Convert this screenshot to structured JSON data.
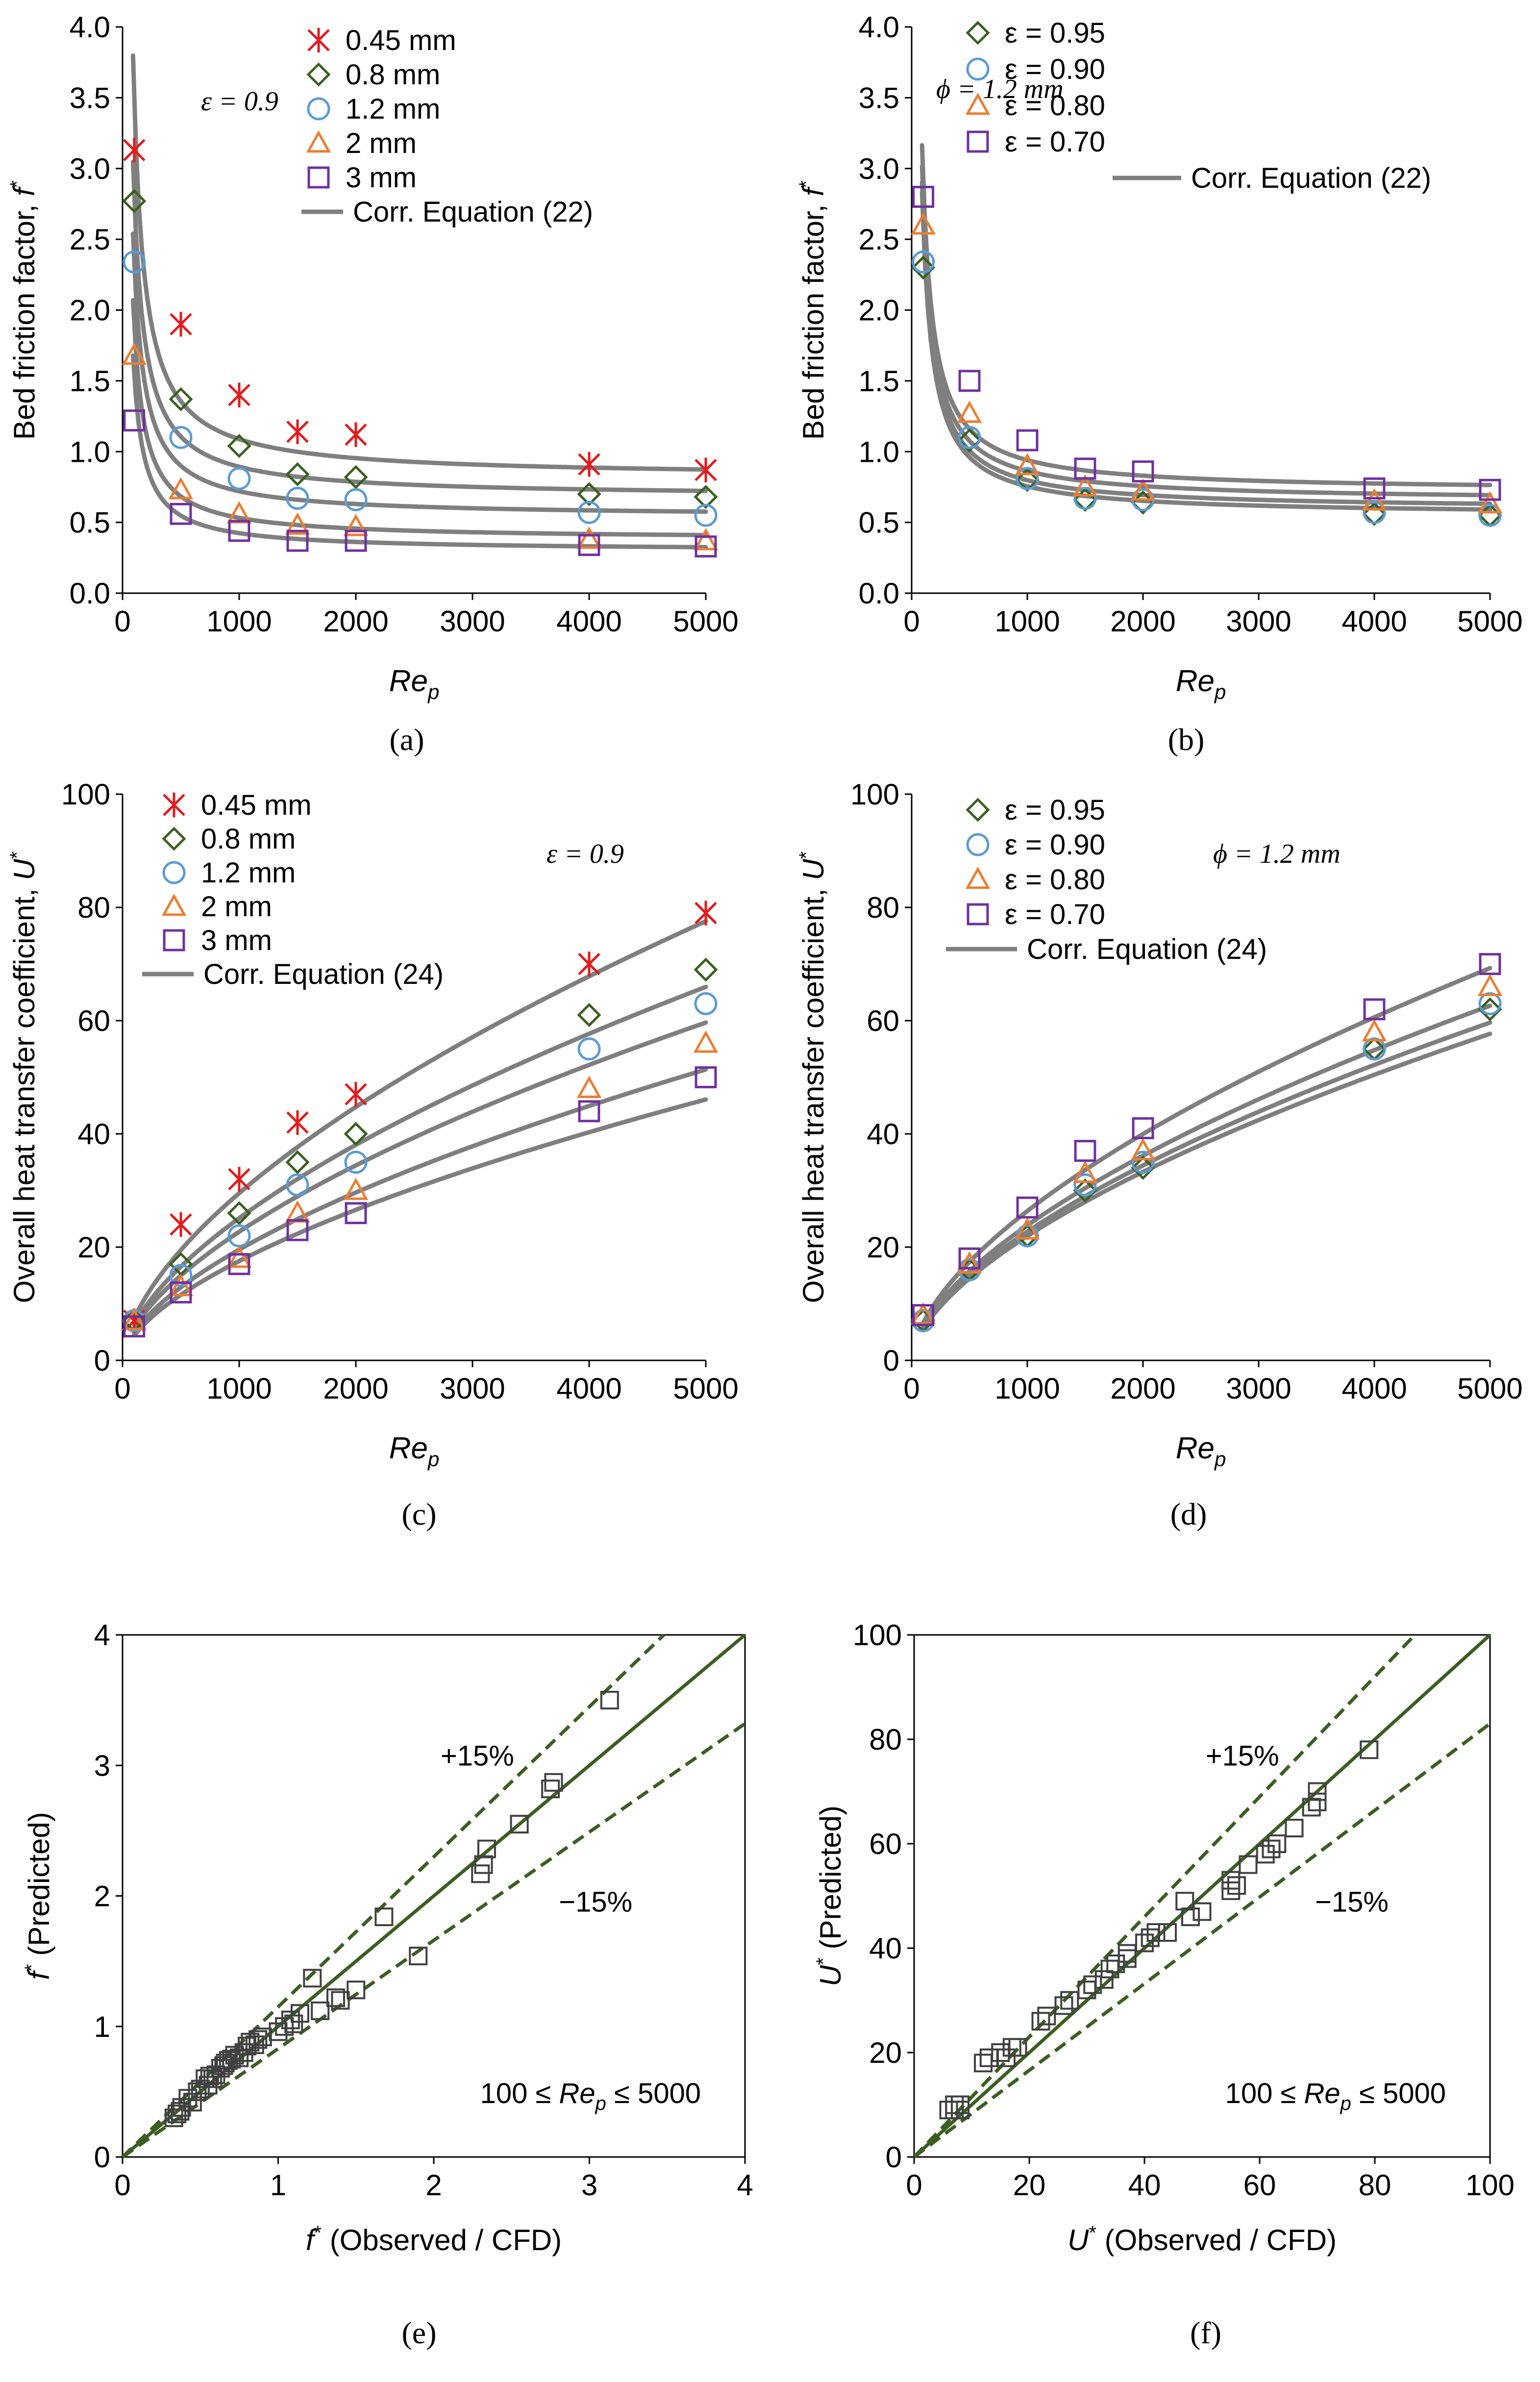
{
  "colors": {
    "red": "#e41a1c",
    "green": "#3a5f1f",
    "blue": "#5b9bd5",
    "orange": "#ed7d31",
    "purple": "#7030a0",
    "curve": "#7f7f7f",
    "parity": "#3b5e22",
    "square": "#404040"
  },
  "chart_data": [
    {
      "id": "a",
      "type": "scatter",
      "caption": "(a)",
      "xlabel_main": "Re",
      "xlabel_sub": "p",
      "ylabel": "Bed friction factor, ",
      "ylabel_symbol": "f",
      "ylabel_sup": "*",
      "xlim": [
        0,
        5000
      ],
      "ylim": [
        0,
        4
      ],
      "xticks": [
        0,
        1000,
        2000,
        3000,
        4000,
        5000
      ],
      "yticks": [
        0,
        0.5,
        1,
        1.5,
        2,
        2.5,
        3,
        3.5,
        4
      ],
      "xtick_labels": [
        "0",
        "1000",
        "2000",
        "3000",
        "4000",
        "5000"
      ],
      "ytick_labels": [
        "0.0",
        "0.5",
        "1.0",
        "1.5",
        "2.0",
        "2.5",
        "3.0",
        "3.5",
        "4.0"
      ],
      "annotation": "ε = 0.9",
      "series": [
        {
          "name": "0.45 mm",
          "marker": "asterisk",
          "color": "red",
          "x": [
            100,
            500,
            1000,
            1500,
            2000,
            4000,
            5000
          ],
          "y": [
            3.13,
            1.9,
            1.4,
            1.14,
            1.12,
            0.91,
            0.87
          ]
        },
        {
          "name": "0.8 mm",
          "marker": "diamond",
          "color": "green",
          "x": [
            100,
            500,
            1000,
            1500,
            2000,
            4000,
            5000
          ],
          "y": [
            2.77,
            1.37,
            1.04,
            0.84,
            0.82,
            0.7,
            0.68
          ]
        },
        {
          "name": "1.2 mm",
          "marker": "circle",
          "color": "blue",
          "x": [
            100,
            500,
            1000,
            1500,
            2000,
            4000,
            5000
          ],
          "y": [
            2.34,
            1.1,
            0.81,
            0.67,
            0.66,
            0.57,
            0.55
          ]
        },
        {
          "name": "2 mm",
          "marker": "triangle",
          "color": "orange",
          "x": [
            100,
            500,
            1000,
            1500,
            2000,
            4000,
            5000
          ],
          "y": [
            1.68,
            0.73,
            0.56,
            0.48,
            0.47,
            0.38,
            0.37
          ]
        },
        {
          "name": "3 mm",
          "marker": "square",
          "color": "purple",
          "x": [
            100,
            500,
            1000,
            1500,
            2000,
            4000,
            5000
          ],
          "y": [
            1.22,
            0.56,
            0.44,
            0.37,
            0.37,
            0.34,
            0.33
          ]
        }
      ],
      "curves": {
        "name": "Corr. Equation (22)",
        "form": "a+b/x",
        "params": [
          [
            0.82,
            268
          ],
          [
            0.68,
            213
          ],
          [
            0.54,
            180
          ],
          [
            0.38,
            152
          ],
          [
            0.3,
            124
          ]
        ]
      }
    },
    {
      "id": "b",
      "type": "scatter",
      "caption": "(b)",
      "xlabel_main": "Re",
      "xlabel_sub": "p",
      "ylabel": "Bed friction factor, ",
      "ylabel_symbol": "f",
      "ylabel_sup": "*",
      "xlim": [
        0,
        5000
      ],
      "ylim": [
        0,
        4
      ],
      "xticks": [
        0,
        1000,
        2000,
        3000,
        4000,
        5000
      ],
      "yticks": [
        0,
        0.5,
        1,
        1.5,
        2,
        2.5,
        3,
        3.5,
        4
      ],
      "xtick_labels": [
        "0",
        "1000",
        "2000",
        "3000",
        "4000",
        "5000"
      ],
      "ytick_labels": [
        "0.0",
        "0.5",
        "1.0",
        "1.5",
        "2.0",
        "2.5",
        "3.0",
        "3.5",
        "4.0"
      ],
      "annotation": "ϕ = 1.2 mm",
      "series": [
        {
          "name": "ε = 0.95",
          "marker": "diamond",
          "color": "green",
          "x": [
            100,
            500,
            1000,
            1500,
            2000,
            4000,
            5000
          ],
          "y": [
            2.3,
            1.08,
            0.8,
            0.66,
            0.64,
            0.56,
            0.55
          ]
        },
        {
          "name": "ε = 0.90",
          "marker": "circle",
          "color": "blue",
          "x": [
            100,
            500,
            1000,
            1500,
            2000,
            4000,
            5000
          ],
          "y": [
            2.34,
            1.1,
            0.81,
            0.67,
            0.66,
            0.57,
            0.55
          ]
        },
        {
          "name": "ε = 0.80",
          "marker": "triangle",
          "color": "orange",
          "x": [
            100,
            500,
            1000,
            1500,
            2000,
            4000,
            5000
          ],
          "y": [
            2.6,
            1.27,
            0.9,
            0.75,
            0.72,
            0.65,
            0.63
          ]
        },
        {
          "name": "ε = 0.70",
          "marker": "square",
          "color": "purple",
          "x": [
            100,
            500,
            1000,
            1500,
            2000,
            4000,
            5000
          ],
          "y": [
            2.8,
            1.5,
            1.08,
            0.88,
            0.86,
            0.74,
            0.73
          ]
        }
      ],
      "curves": {
        "name": "Corr. Equation (22)",
        "form": "a+b/x",
        "params": [
          [
            0.55,
            205
          ],
          [
            0.59,
            208
          ],
          [
            0.65,
            213
          ],
          [
            0.72,
            220
          ]
        ]
      }
    },
    {
      "id": "c",
      "type": "scatter",
      "caption": "(c)",
      "xlabel_main": "Re",
      "xlabel_sub": "p",
      "ylabel": "Overall heat transfer coefficient, ",
      "ylabel_symbol": "U",
      "ylabel_sup": "*",
      "xlim": [
        0,
        5000
      ],
      "ylim": [
        0,
        100
      ],
      "xticks": [
        0,
        1000,
        2000,
        3000,
        4000,
        5000
      ],
      "yticks": [
        0,
        20,
        40,
        60,
        80,
        100
      ],
      "xtick_labels": [
        "0",
        "1000",
        "2000",
        "3000",
        "4000",
        "5000"
      ],
      "ytick_labels": [
        "0",
        "20",
        "40",
        "60",
        "80",
        "100"
      ],
      "annotation": "ε = 0.9",
      "series": [
        {
          "name": "0.45 mm",
          "marker": "asterisk",
          "color": "red",
          "x": [
            100,
            500,
            1000,
            1500,
            2000,
            4000,
            5000
          ],
          "y": [
            7,
            24,
            32,
            42,
            47,
            70,
            79
          ]
        },
        {
          "name": "0.8 mm",
          "marker": "diamond",
          "color": "green",
          "x": [
            100,
            500,
            1000,
            1500,
            2000,
            4000,
            5000
          ],
          "y": [
            7,
            17,
            26,
            35,
            40,
            61,
            69
          ]
        },
        {
          "name": "1.2 mm",
          "marker": "circle",
          "color": "blue",
          "x": [
            100,
            500,
            1000,
            1500,
            2000,
            4000,
            5000
          ],
          "y": [
            7,
            15,
            22,
            31,
            35,
            55,
            63
          ]
        },
        {
          "name": "2 mm",
          "marker": "triangle",
          "color": "orange",
          "x": [
            100,
            500,
            1000,
            1500,
            2000,
            4000,
            5000
          ],
          "y": [
            7,
            13,
            18,
            26,
            30,
            48,
            56
          ]
        },
        {
          "name": "3 mm",
          "marker": "square",
          "color": "purple",
          "x": [
            100,
            500,
            1000,
            1500,
            2000,
            4000,
            5000
          ],
          "y": [
            6,
            12,
            17,
            23,
            26,
            44,
            50
          ]
        }
      ],
      "curves": {
        "name": "Corr. Equation (24)",
        "form": "k*x^0.6",
        "params": [
          [
            0.468
          ],
          [
            0.398
          ],
          [
            0.36
          ],
          [
            0.31
          ],
          [
            0.278
          ]
        ]
      }
    },
    {
      "id": "d",
      "type": "scatter",
      "caption": "(d)",
      "xlabel_main": "Re",
      "xlabel_sub": "p",
      "ylabel": "Overall heat transfer coefficient, ",
      "ylabel_symbol": "U",
      "ylabel_sup": "*",
      "xlim": [
        0,
        5000
      ],
      "ylim": [
        0,
        100
      ],
      "xticks": [
        0,
        1000,
        2000,
        3000,
        4000,
        5000
      ],
      "yticks": [
        0,
        20,
        40,
        60,
        80,
        100
      ],
      "xtick_labels": [
        "0",
        "1000",
        "2000",
        "3000",
        "4000",
        "5000"
      ],
      "ytick_labels": [
        "0",
        "20",
        "40",
        "60",
        "80",
        "100"
      ],
      "annotation": "ϕ = 1.2 mm",
      "series": [
        {
          "name": "ε = 0.95",
          "marker": "diamond",
          "color": "green",
          "x": [
            100,
            500,
            1000,
            1500,
            2000,
            4000,
            5000
          ],
          "y": [
            7,
            16,
            22,
            30,
            34,
            55,
            62
          ]
        },
        {
          "name": "ε = 0.90",
          "marker": "circle",
          "color": "blue",
          "x": [
            100,
            500,
            1000,
            1500,
            2000,
            4000,
            5000
          ],
          "y": [
            7,
            16,
            22,
            31,
            35,
            55,
            63
          ]
        },
        {
          "name": "ε = 0.80",
          "marker": "triangle",
          "color": "orange",
          "x": [
            100,
            500,
            1000,
            1500,
            2000,
            4000,
            5000
          ],
          "y": [
            8,
            17,
            23,
            33,
            37,
            58,
            66
          ]
        },
        {
          "name": "ε = 0.70",
          "marker": "square",
          "color": "purple",
          "x": [
            100,
            500,
            1000,
            1500,
            2000,
            4000,
            5000
          ],
          "y": [
            8,
            18,
            27,
            37,
            41,
            62,
            70
          ]
        }
      ],
      "curves": {
        "name": "Corr. Equation (24)",
        "form": "k*x^0.6",
        "params": [
          [
            0.348
          ],
          [
            0.36
          ],
          [
            0.378
          ],
          [
            0.418
          ]
        ]
      }
    },
    {
      "id": "e",
      "type": "parity",
      "caption": "(e)",
      "xlabel_symbol": "f",
      "xlabel_sup": "*",
      "xlabel_rest": " (Observed / CFD)",
      "ylabel_symbol": "f",
      "ylabel_sup": "*",
      "ylabel_rest": " (Predicted)",
      "xlim": [
        0,
        4
      ],
      "ylim": [
        0,
        4
      ],
      "xticks": [
        0,
        1,
        2,
        3,
        4
      ],
      "yticks": [
        0,
        1,
        2,
        3,
        4
      ],
      "xtick_labels": [
        "0",
        "1",
        "2",
        "3",
        "4"
      ],
      "ytick_labels": [
        "0",
        "1",
        "2",
        "3",
        "4"
      ],
      "plus_label": "+15%",
      "minus_label": "−15%",
      "range_prefix": "100 ≤ ",
      "range_main": "Re",
      "range_sub": "p",
      "range_suffix": " ≤ 5000",
      "series": [
        {
          "name": "data",
          "x": [
            0.33,
            0.35,
            0.37,
            0.38,
            0.42,
            0.45,
            0.48,
            0.5,
            0.53,
            0.55,
            0.56,
            0.58,
            0.6,
            0.63,
            0.65,
            0.66,
            0.68,
            0.7,
            0.72,
            0.75,
            0.78,
            0.8,
            0.82,
            0.85,
            0.87,
            0.9,
            1.0,
            1.04,
            1.08,
            1.1,
            1.14,
            1.22,
            1.27,
            1.37,
            1.4,
            1.5,
            1.68,
            1.9,
            2.3,
            2.32,
            2.34,
            2.55,
            2.75,
            2.77,
            3.13
          ],
          "y": [
            0.3,
            0.33,
            0.35,
            0.38,
            0.45,
            0.42,
            0.5,
            0.52,
            0.6,
            0.55,
            0.62,
            0.6,
            0.63,
            0.68,
            0.7,
            0.72,
            0.74,
            0.75,
            0.78,
            0.76,
            0.8,
            0.85,
            0.88,
            0.86,
            0.9,
            0.92,
            0.96,
            1.0,
            1.05,
            1.02,
            1.1,
            1.37,
            1.12,
            1.22,
            1.2,
            1.28,
            1.84,
            1.54,
            2.17,
            2.24,
            2.36,
            2.55,
            2.82,
            2.87,
            3.5
          ]
        }
      ]
    },
    {
      "id": "f",
      "type": "parity",
      "caption": "(f)",
      "xlabel_symbol": "U",
      "xlabel_sup": "*",
      "xlabel_rest": " (Observed / CFD)",
      "ylabel_symbol": "U",
      "ylabel_sup": "*",
      "ylabel_rest": " (Predicted)",
      "xlim": [
        0,
        100
      ],
      "ylim": [
        0,
        100
      ],
      "xticks": [
        0,
        20,
        40,
        60,
        80,
        100
      ],
      "yticks": [
        0,
        20,
        40,
        60,
        80,
        100
      ],
      "xtick_labels": [
        "0",
        "20",
        "40",
        "60",
        "80",
        "100"
      ],
      "ytick_labels": [
        "0",
        "20",
        "40",
        "60",
        "80",
        "100"
      ],
      "plus_label": "+15%",
      "minus_label": "−15%",
      "range_prefix": "100 ≤ ",
      "range_main": "Re",
      "range_sub": "p",
      "range_suffix": " ≤ 5000",
      "series": [
        {
          "name": "data",
          "x": [
            6,
            7,
            7,
            8,
            8,
            12,
            13,
            15,
            16,
            17,
            18,
            22,
            23,
            26,
            27,
            30,
            31,
            33,
            34,
            35,
            37,
            37,
            40,
            41,
            42,
            44,
            47,
            48,
            50,
            55,
            55,
            56,
            58,
            61,
            62,
            63,
            66,
            69,
            70,
            70,
            79
          ],
          "y": [
            9,
            9,
            10,
            9,
            10,
            18,
            19,
            20,
            19,
            21,
            21,
            26,
            27,
            29,
            30,
            32,
            33,
            34,
            36,
            37,
            38,
            39,
            41,
            42,
            43,
            43,
            49,
            46,
            47,
            51,
            53,
            52,
            56,
            58,
            59,
            60,
            63,
            67,
            68,
            70,
            78
          ]
        }
      ]
    }
  ]
}
